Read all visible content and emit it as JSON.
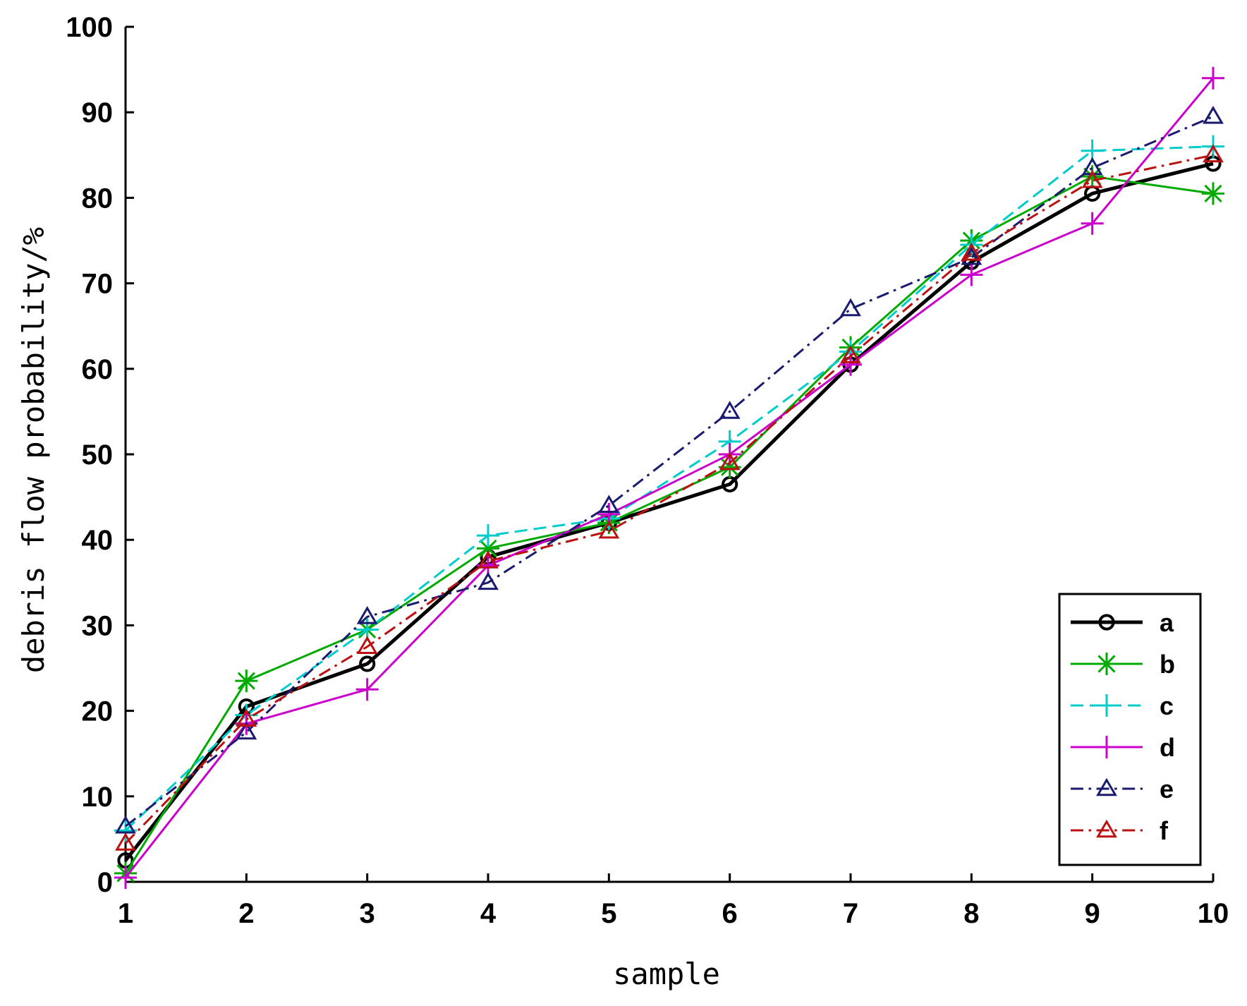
{
  "chart_data": {
    "type": "line",
    "title": "",
    "xlabel": "sample",
    "ylabel": "debris flow probability/%",
    "x": [
      1,
      2,
      3,
      4,
      5,
      6,
      7,
      8,
      9,
      10
    ],
    "xlim": [
      1,
      10
    ],
    "ylim": [
      0,
      100
    ],
    "xticks": [
      "1",
      "2",
      "3",
      "4",
      "5",
      "6",
      "7",
      "8",
      "9",
      "10"
    ],
    "yticks": [
      "0",
      "10",
      "20",
      "30",
      "40",
      "50",
      "60",
      "70",
      "80",
      "90",
      "100"
    ],
    "grid": false,
    "legend_position": "bottom-right",
    "series": [
      {
        "name": "a",
        "color": "#000000",
        "marker": "circle",
        "line": "solid",
        "width": 5,
        "values": [
          2.5,
          20.5,
          25.5,
          38,
          42,
          46.5,
          60.5,
          72.5,
          80.5,
          84
        ]
      },
      {
        "name": "b",
        "color": "#00aa00",
        "marker": "star",
        "line": "solid",
        "width": 3,
        "values": [
          1,
          23.5,
          29.5,
          39,
          42,
          48.5,
          62.5,
          75,
          82.5,
          80.5
        ]
      },
      {
        "name": "c",
        "color": "#00cccc",
        "marker": "plus",
        "line": "dashed",
        "width": 3,
        "values": [
          6,
          19.5,
          29.5,
          40.5,
          42.5,
          51.5,
          62,
          74.5,
          85.5,
          86
        ]
      },
      {
        "name": "d",
        "color": "#cc00cc",
        "marker": "plus",
        "line": "solid",
        "width": 3,
        "values": [
          0.5,
          18.5,
          22.5,
          37,
          43,
          50,
          60.5,
          71,
          77,
          94
        ]
      },
      {
        "name": "e",
        "color": "#1a1a6e",
        "marker": "triangle",
        "line": "dashdot",
        "width": 3,
        "values": [
          6.5,
          17.5,
          31,
          35,
          44,
          55,
          67,
          73,
          83.5,
          89.5
        ]
      },
      {
        "name": "f",
        "color": "#bb1111",
        "marker": "triangle",
        "line": "dashdot",
        "width": 3,
        "values": [
          4.5,
          19,
          27.5,
          37.5,
          41,
          49,
          61.5,
          73.5,
          82,
          85
        ]
      }
    ]
  }
}
